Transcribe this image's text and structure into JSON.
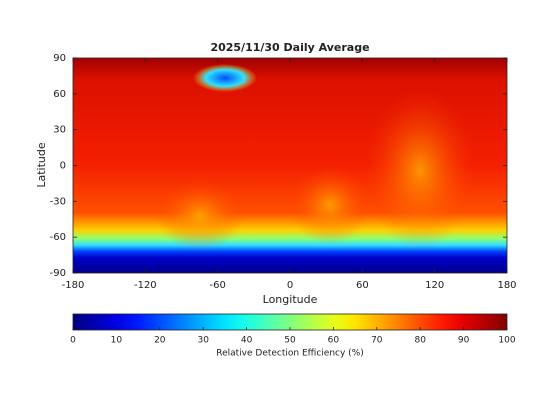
{
  "chart_data": {
    "type": "heatmap",
    "title": "2025/11/30 Daily Average",
    "x_label": "Longitude",
    "y_label": "Latitude",
    "xlim": [
      -180,
      180
    ],
    "xticks": [
      -180,
      -120,
      -60,
      0,
      60,
      120,
      180
    ],
    "ylim": [
      -90,
      90
    ],
    "yticks": [
      -90,
      -60,
      -30,
      0,
      30,
      60,
      90
    ],
    "colormap": "jet",
    "colorbar": {
      "label": "Relative Detection Efficiency (%)",
      "lim": [
        0,
        100
      ],
      "ticks": [
        0,
        10,
        20,
        30,
        40,
        50,
        60,
        70,
        80,
        90,
        100
      ]
    }
  }
}
